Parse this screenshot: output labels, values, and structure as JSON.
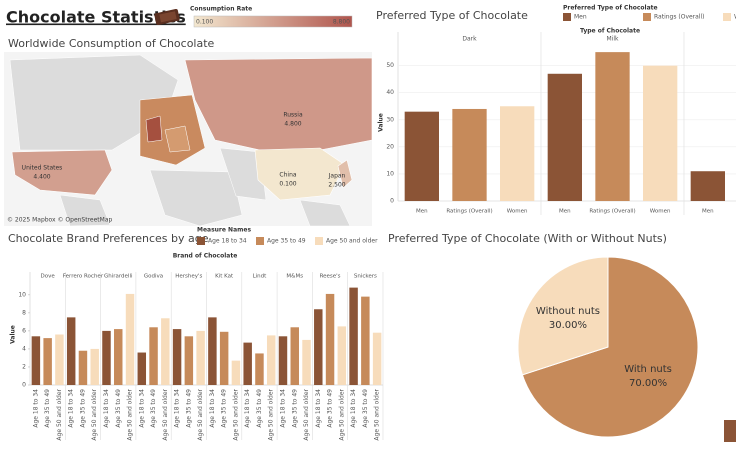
{
  "dashboard": {
    "title": "Chocolate Statistics"
  },
  "chart_data": [
    {
      "type": "map",
      "title": "Worldwide Consumption of Chocolate",
      "legend_title": "Consumption Rate",
      "color_range": [
        {
          "value": 0.1,
          "label": "0.100"
        },
        {
          "value": 8.8,
          "label": "8.800"
        }
      ],
      "colors": [
        "#f3e7cf",
        "#b0554d"
      ],
      "categories": [
        "Russia",
        "United States",
        "China",
        "Japan"
      ],
      "values": [
        4.8,
        4.4,
        0.1,
        2.5
      ],
      "value_labels": [
        "4.800",
        "4.400",
        "0.100",
        "2.500"
      ],
      "attribution": "© 2025 Mapbox © OpenStreetMap"
    },
    {
      "type": "bar",
      "title": "Preferred Type of Chocolate",
      "legend_title": "Preferred Type of Chocolate",
      "group_header": "Type of Chocolate",
      "categories": [
        "Dark",
        "Milk",
        null
      ],
      "series": [
        {
          "name": "Men",
          "color": "#8b5436",
          "values": [
            33,
            47,
            11
          ]
        },
        {
          "name": "Ratings (Overall)",
          "color": "#c68a5a",
          "values": [
            34,
            55,
            null
          ]
        },
        {
          "name": "Women",
          "color": "#f7dcbb",
          "values": [
            35,
            50,
            null
          ]
        }
      ],
      "ylabel": "Value",
      "ylim": [
        0,
        58
      ],
      "yticks": [
        0,
        10,
        20,
        30,
        40,
        50
      ],
      "grid": true
    },
    {
      "type": "bar",
      "title": "Chocolate Brand Preferences by age",
      "legend_title": "Measure Names",
      "group_header": "Brand of Chocolate",
      "categories": [
        "Dove",
        "Ferrero Rocher",
        "Ghirardelli",
        "Godiva",
        "Hershey's",
        "Kit Kat",
        "Lindt",
        "M&Ms",
        "Reese's",
        "Snickers"
      ],
      "series": [
        {
          "name": "Age 18 to 34",
          "color": "#8b5436",
          "values": [
            5.4,
            7.5,
            6.0,
            3.6,
            6.2,
            7.5,
            4.7,
            5.4,
            8.4,
            10.8
          ]
        },
        {
          "name": "Age 35 to 49",
          "color": "#c68a5a",
          "values": [
            5.2,
            3.8,
            6.2,
            6.4,
            5.4,
            5.9,
            3.5,
            6.4,
            10.1,
            9.8
          ]
        },
        {
          "name": "Age 50 and older",
          "color": "#f7dcbb",
          "values": [
            5.6,
            4.0,
            10.1,
            7.4,
            6.0,
            2.7,
            5.5,
            5.0,
            6.5,
            5.8
          ]
        }
      ],
      "ylabel": "Value",
      "ylim": [
        0,
        11.2
      ],
      "yticks": [
        0,
        2,
        4,
        6,
        8,
        10
      ],
      "grid": false
    },
    {
      "type": "pie",
      "title": "Preferred Type of Chocolate (With or Without Nuts)",
      "categories": [
        "With nuts",
        "Without nuts"
      ],
      "values": [
        70,
        30
      ],
      "value_labels": [
        "70.00%",
        "30.00%"
      ],
      "colors": [
        "#c68a5a",
        "#f7dcbb"
      ]
    }
  ]
}
